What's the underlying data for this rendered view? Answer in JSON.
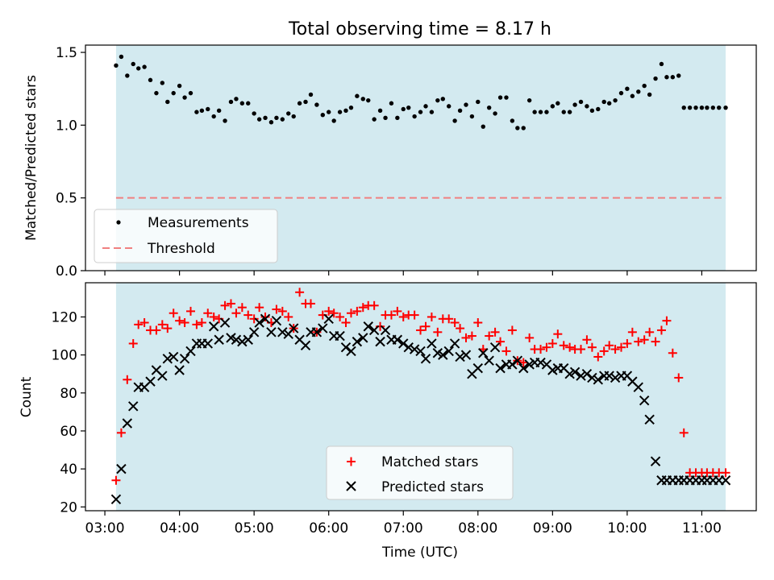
{
  "figure": {
    "title": "Total observing time = 8.17 h"
  },
  "colors": {
    "band": "#d3eaf0",
    "measurement": "#000000",
    "threshold": "#f08080",
    "matched": "#ff0000",
    "predicted": "#000000"
  },
  "chart_data": [
    {
      "type": "scatter",
      "ylabel": "Matched/Predicted stars",
      "ylim": [
        0,
        1.55
      ],
      "yticks": [
        0.0,
        0.5,
        1.0,
        1.5
      ],
      "ytick_labels": [
        "0.0",
        "0.5",
        "1.0",
        "1.5"
      ],
      "xlim_hours": [
        2.74,
        11.73
      ],
      "observing_window_hours": [
        3.15,
        11.32
      ],
      "legend": {
        "location": "lower-left",
        "entries": [
          {
            "label": "Measurements",
            "marker": "dot"
          },
          {
            "label": "Threshold",
            "marker": "dashed-line"
          }
        ]
      },
      "threshold": 0.5,
      "series": [
        {
          "name": "Measurements",
          "x": [
            3.15,
            3.22,
            3.3,
            3.38,
            3.45,
            3.53,
            3.61,
            3.69,
            3.77,
            3.84,
            3.92,
            4.0,
            4.07,
            4.15,
            4.23,
            4.3,
            4.38,
            4.46,
            4.53,
            4.61,
            4.69,
            4.76,
            4.84,
            4.92,
            5.0,
            5.07,
            5.15,
            5.23,
            5.3,
            5.38,
            5.46,
            5.53,
            5.61,
            5.69,
            5.76,
            5.84,
            5.92,
            6.0,
            6.07,
            6.15,
            6.23,
            6.3,
            6.38,
            6.46,
            6.53,
            6.61,
            6.69,
            6.76,
            6.84,
            6.92,
            7.0,
            7.07,
            7.15,
            7.23,
            7.3,
            7.38,
            7.46,
            7.53,
            7.61,
            7.69,
            7.76,
            7.84,
            7.92,
            8.0,
            8.07,
            8.15,
            8.23,
            8.3,
            8.38,
            8.46,
            8.53,
            8.61,
            8.69,
            8.76,
            8.84,
            8.92,
            9.0,
            9.07,
            9.15,
            9.23,
            9.3,
            9.38,
            9.46,
            9.53,
            9.61,
            9.69,
            9.76,
            9.84,
            9.92,
            10.0,
            10.07,
            10.15,
            10.23,
            10.3,
            10.38,
            10.46,
            10.53,
            10.61,
            10.69,
            10.76,
            10.84,
            10.92,
            11.0,
            11.07,
            11.15,
            11.23,
            11.32
          ],
          "y": [
            1.41,
            1.47,
            1.34,
            1.42,
            1.39,
            1.4,
            1.31,
            1.22,
            1.29,
            1.16,
            1.22,
            1.27,
            1.19,
            1.22,
            1.09,
            1.1,
            1.11,
            1.06,
            1.1,
            1.03,
            1.16,
            1.18,
            1.15,
            1.15,
            1.08,
            1.04,
            1.05,
            1.02,
            1.05,
            1.04,
            1.08,
            1.06,
            1.15,
            1.16,
            1.21,
            1.14,
            1.07,
            1.09,
            1.03,
            1.09,
            1.1,
            1.12,
            1.2,
            1.18,
            1.17,
            1.04,
            1.1,
            1.05,
            1.15,
            1.05,
            1.11,
            1.12,
            1.06,
            1.09,
            1.13,
            1.09,
            1.17,
            1.18,
            1.13,
            1.03,
            1.1,
            1.14,
            1.06,
            1.16,
            0.99,
            1.12,
            1.08,
            1.19,
            1.19,
            1.03,
            0.98,
            0.98,
            1.17,
            1.09,
            1.09,
            1.09,
            1.13,
            1.15,
            1.09,
            1.09,
            1.14,
            1.16,
            1.13,
            1.1,
            1.11,
            1.16,
            1.15,
            1.17,
            1.22,
            1.25,
            1.2,
            1.23,
            1.27,
            1.21,
            1.32,
            1.42,
            1.33,
            1.33,
            1.34,
            1.12,
            1.12,
            1.12,
            1.12,
            1.12,
            1.12,
            1.12,
            1.12
          ]
        }
      ]
    },
    {
      "type": "scatter",
      "xlabel": "Time (UTC)",
      "ylabel": "Count",
      "ylim": [
        18,
        138
      ],
      "yticks": [
        20,
        40,
        60,
        80,
        100,
        120
      ],
      "ytick_labels": [
        "20",
        "40",
        "60",
        "80",
        "100",
        "120"
      ],
      "xticks_hours": [
        3,
        4,
        5,
        6,
        7,
        8,
        9,
        10,
        11
      ],
      "xtick_labels": [
        "03:00",
        "04:00",
        "05:00",
        "06:00",
        "07:00",
        "08:00",
        "09:00",
        "10:00",
        "11:00"
      ],
      "xlim_hours": [
        2.74,
        11.73
      ],
      "observing_window_hours": [
        3.15,
        11.32
      ],
      "legend": {
        "location": "lower-center",
        "entries": [
          {
            "label": "Matched stars",
            "marker": "plus"
          },
          {
            "label": "Predicted stars",
            "marker": "x"
          }
        ]
      },
      "series": [
        {
          "name": "Matched stars",
          "x": [
            3.15,
            3.22,
            3.3,
            3.38,
            3.45,
            3.53,
            3.61,
            3.69,
            3.77,
            3.84,
            3.92,
            4.0,
            4.07,
            4.15,
            4.23,
            4.3,
            4.38,
            4.46,
            4.53,
            4.61,
            4.69,
            4.76,
            4.84,
            4.92,
            5.0,
            5.07,
            5.15,
            5.23,
            5.3,
            5.38,
            5.46,
            5.53,
            5.61,
            5.69,
            5.76,
            5.84,
            5.92,
            6.0,
            6.07,
            6.15,
            6.23,
            6.3,
            6.38,
            6.46,
            6.53,
            6.61,
            6.69,
            6.76,
            6.84,
            6.92,
            7.0,
            7.07,
            7.15,
            7.23,
            7.3,
            7.38,
            7.46,
            7.53,
            7.61,
            7.69,
            7.76,
            7.84,
            7.92,
            8.0,
            8.07,
            8.15,
            8.23,
            8.3,
            8.38,
            8.46,
            8.53,
            8.61,
            8.69,
            8.76,
            8.84,
            8.92,
            9.0,
            9.07,
            9.15,
            9.23,
            9.3,
            9.38,
            9.46,
            9.53,
            9.61,
            9.69,
            9.76,
            9.84,
            9.92,
            10.0,
            10.07,
            10.15,
            10.23,
            10.3,
            10.38,
            10.46,
            10.53,
            10.61,
            10.69,
            10.76,
            10.84,
            10.92,
            11.0,
            11.07,
            11.15,
            11.23,
            11.32
          ],
          "y": [
            34,
            59,
            87,
            106,
            116,
            117,
            113,
            113,
            116,
            114,
            122,
            118,
            117,
            123,
            116,
            117,
            122,
            120,
            119,
            126,
            127,
            122,
            125,
            121,
            119,
            125,
            120,
            117,
            124,
            123,
            120,
            114,
            133,
            127,
            127,
            112,
            121,
            123,
            122,
            120,
            117,
            122,
            123,
            125,
            126,
            126,
            115,
            121,
            121,
            123,
            120,
            121,
            121,
            113,
            115,
            120,
            112,
            119,
            119,
            117,
            114,
            109,
            110,
            117,
            103,
            110,
            112,
            107,
            102,
            113,
            97,
            96,
            109,
            103,
            103,
            104,
            106,
            111,
            105,
            104,
            103,
            103,
            108,
            104,
            99,
            102,
            105,
            103,
            104,
            106,
            112,
            107,
            108,
            112,
            107,
            113,
            118,
            101,
            88,
            59,
            38,
            38,
            38,
            38,
            38,
            38,
            38
          ]
        },
        {
          "name": "Predicted stars",
          "x": [
            3.15,
            3.22,
            3.3,
            3.38,
            3.45,
            3.53,
            3.61,
            3.69,
            3.77,
            3.84,
            3.92,
            4.0,
            4.07,
            4.15,
            4.23,
            4.3,
            4.38,
            4.46,
            4.53,
            4.61,
            4.69,
            4.76,
            4.84,
            4.92,
            5.0,
            5.07,
            5.15,
            5.23,
            5.3,
            5.38,
            5.46,
            5.53,
            5.61,
            5.69,
            5.76,
            5.84,
            5.92,
            6.0,
            6.07,
            6.15,
            6.23,
            6.3,
            6.38,
            6.46,
            6.53,
            6.61,
            6.69,
            6.76,
            6.84,
            6.92,
            7.0,
            7.07,
            7.15,
            7.23,
            7.3,
            7.38,
            7.46,
            7.53,
            7.61,
            7.69,
            7.76,
            7.84,
            7.92,
            8.0,
            8.07,
            8.15,
            8.23,
            8.3,
            8.38,
            8.46,
            8.53,
            8.61,
            8.69,
            8.76,
            8.84,
            8.92,
            9.0,
            9.07,
            9.15,
            9.23,
            9.3,
            9.38,
            9.46,
            9.53,
            9.61,
            9.69,
            9.76,
            9.84,
            9.92,
            10.0,
            10.07,
            10.15,
            10.23,
            10.3,
            10.38,
            10.46,
            10.53,
            10.61,
            10.69,
            10.76,
            10.84,
            10.92,
            11.0,
            11.07,
            11.15,
            11.23,
            11.32
          ],
          "y": [
            24,
            40,
            64,
            73,
            83,
            83,
            86,
            92,
            89,
            98,
            99,
            92,
            98,
            102,
            106,
            106,
            106,
            115,
            108,
            117,
            109,
            108,
            107,
            108,
            112,
            117,
            119,
            112,
            118,
            112,
            111,
            114,
            108,
            105,
            112,
            112,
            114,
            119,
            110,
            110,
            104,
            102,
            107,
            109,
            115,
            113,
            107,
            113,
            108,
            108,
            106,
            104,
            103,
            102,
            98,
            106,
            101,
            100,
            102,
            106,
            99,
            100,
            90,
            93,
            101,
            97,
            104,
            93,
            95,
            95,
            97,
            93,
            95,
            96,
            96,
            95,
            92,
            93,
            93,
            90,
            91,
            89,
            90,
            88,
            87,
            89,
            89,
            88,
            89,
            89,
            86,
            83,
            76,
            66,
            44,
            34,
            34,
            34,
            34,
            34,
            34,
            34,
            34,
            34,
            34,
            34,
            34
          ]
        }
      ]
    }
  ]
}
